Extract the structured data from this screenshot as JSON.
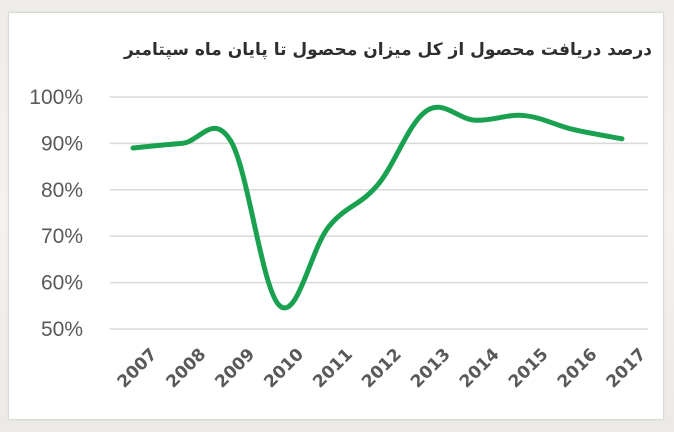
{
  "chart_data": {
    "type": "line",
    "title": "درصد دریافت محصول  از کل میزان محصول تا پایان ماه سپتامبر",
    "xlabel": "",
    "ylabel": "",
    "categories": [
      "2007",
      "2008",
      "2009",
      "2010",
      "2011",
      "2012",
      "2013",
      "2014",
      "2015",
      "2016",
      "2017"
    ],
    "series": [
      {
        "name": "درصد دریافت محصول",
        "values": [
          89,
          90,
          90.5,
          55,
          72,
          81,
          97,
          95,
          96,
          93,
          91
        ],
        "color": "#1aa150"
      }
    ],
    "yticks": [
      "100%",
      "90%",
      "80%",
      "70%",
      "60%",
      "50%"
    ],
    "ylim": [
      50,
      100
    ],
    "grid": true,
    "legend": "none",
    "smooth": true
  },
  "colors": {
    "line": "#1aa150",
    "grid": "#d9d9d9",
    "tick_text": "#595959",
    "title_text": "#2e2e2e"
  }
}
